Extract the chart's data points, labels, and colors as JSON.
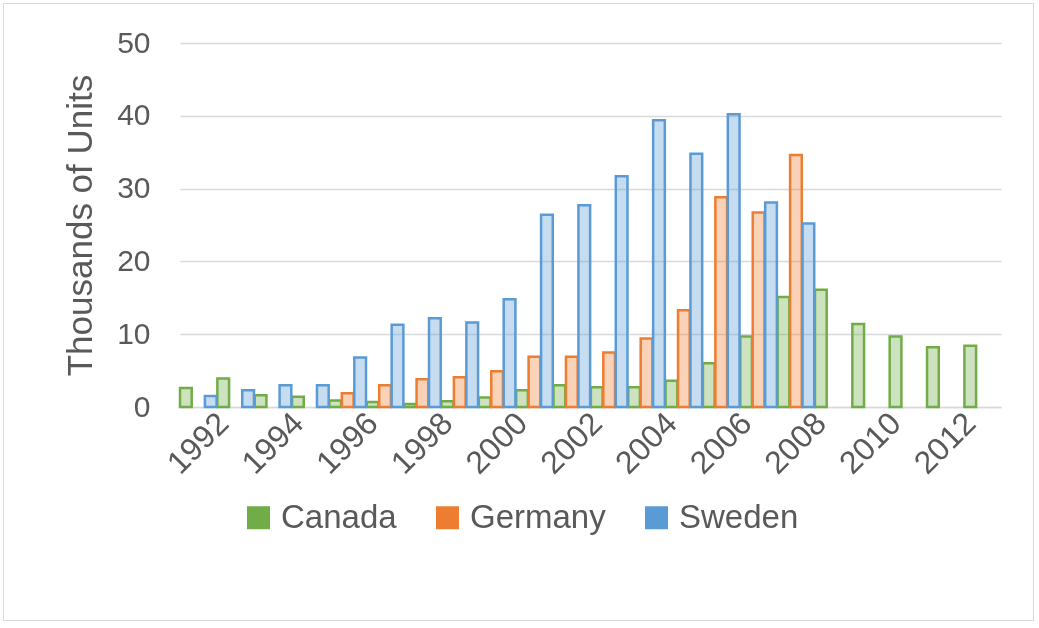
{
  "chart_data": {
    "type": "bar",
    "ylabel": "Thousands of Units",
    "categories": [
      "1992",
      null,
      "1994",
      null,
      "1996",
      null,
      "1998",
      null,
      "2000",
      null,
      "2002",
      null,
      "2004",
      null,
      "2006",
      null,
      "2008",
      null,
      "2010",
      null,
      "2012",
      null
    ],
    "series": [
      {
        "name": "Canada",
        "color": "#70ad47",
        "values": [
          2.6,
          3.9,
          1.6,
          1.4,
          0.9,
          0.7,
          0.4,
          0.8,
          1.3,
          2.3,
          3.0,
          2.7,
          2.7,
          3.6,
          6.0,
          9.7,
          15.1,
          16.1,
          11.4,
          9.7,
          8.2,
          8.4
        ]
      },
      {
        "name": "Germany",
        "color": "#ed7d31",
        "values": [
          null,
          null,
          null,
          null,
          1.9,
          3.0,
          3.8,
          4.1,
          4.9,
          6.9,
          6.9,
          7.5,
          9.4,
          13.3,
          28.8,
          26.7,
          34.6,
          null,
          null,
          null,
          null,
          null
        ]
      },
      {
        "name": "Sweden",
        "color": "#5b9bd5",
        "values": [
          1.5,
          2.3,
          3.0,
          3.0,
          6.8,
          11.3,
          12.2,
          11.6,
          14.8,
          26.4,
          27.7,
          31.7,
          39.4,
          34.8,
          40.2,
          28.1,
          25.2,
          null,
          null,
          null,
          null,
          null
        ]
      }
    ],
    "ylim": [
      0,
      50
    ],
    "yticks": [
      0,
      10,
      20,
      30,
      40,
      50
    ],
    "grid": "y",
    "legend": "bottom"
  }
}
